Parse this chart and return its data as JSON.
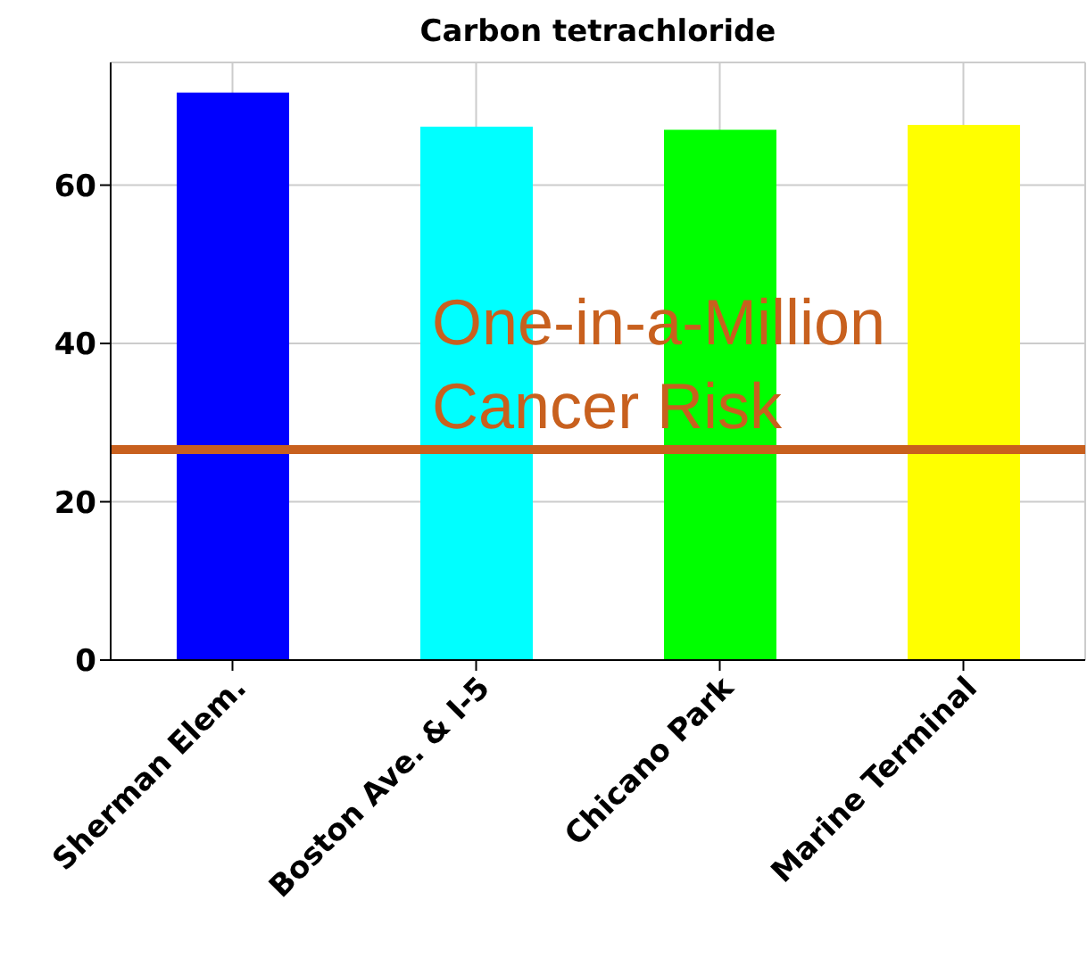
{
  "chart_data": {
    "type": "bar",
    "title": "Carbon tetrachloride",
    "categories": [
      "Sherman Elem.",
      "Boston Ave. & I-5",
      "Chicano Park",
      "Marine Terminal"
    ],
    "values": [
      71.7,
      67.4,
      67.0,
      67.6
    ],
    "colors": [
      "#0000ff",
      "#00ffff",
      "#00ff00",
      "#ffff00"
    ],
    "ylim": [
      0,
      75.5
    ],
    "yticks": [
      0,
      20,
      40,
      60
    ],
    "grid": true,
    "ref_lines": [
      {
        "axis": "y",
        "value": 26.6,
        "label": "One-in-a-Million Cancer Risk",
        "color": "#c8601e"
      }
    ]
  }
}
